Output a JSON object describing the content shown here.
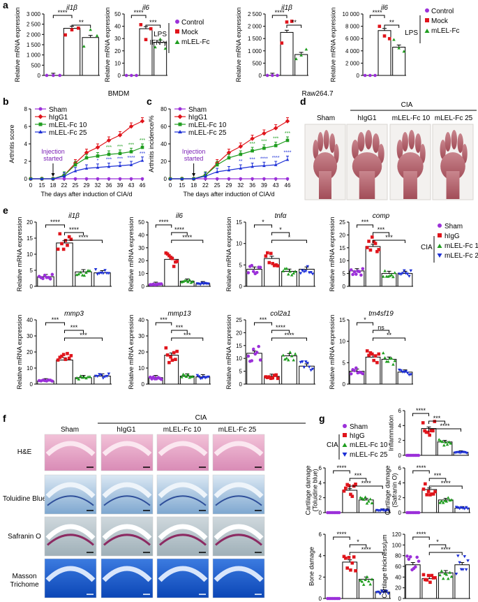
{
  "colors": {
    "sham": "#9b30d9",
    "higg": "#e0141b",
    "m10": "#1f9d1f",
    "m25": "#1c2fd6",
    "bar": "#000000"
  },
  "panel_labels": {
    "a": "a",
    "b": "b",
    "c": "c",
    "d": "d",
    "e": "e",
    "f": "f",
    "g": "g"
  },
  "legends": {
    "a_left": {
      "lps": "LPS",
      "ifn": "IFN-γ",
      "items": [
        {
          "label": "Control",
          "color": "#9b30d9",
          "marker": "circle"
        },
        {
          "label": "Mock",
          "color": "#e0141b",
          "marker": "square"
        },
        {
          "label": "mLEL-Fc",
          "color": "#1f9d1f",
          "marker": "triangle"
        }
      ]
    },
    "a_right": {
      "lps": "LPS",
      "items": [
        {
          "label": "Control",
          "color": "#9b30d9",
          "marker": "circle"
        },
        {
          "label": "Mock",
          "color": "#e0141b",
          "marker": "square"
        },
        {
          "label": "mLEL-Fc",
          "color": "#1f9d1f",
          "marker": "triangle"
        }
      ]
    },
    "cia_groups": {
      "cia": "CIA",
      "items": [
        {
          "label": "Sham",
          "color": "#9b30d9",
          "marker": "circle"
        },
        {
          "label": "hIgG",
          "color": "#e0141b",
          "marker": "square"
        },
        {
          "label": "mLEL-Fc 10",
          "color": "#1f9d1f",
          "marker": "triangle"
        },
        {
          "label": "mLEL-Fc 25",
          "color": "#1c2fd6",
          "marker": "triangledown"
        }
      ]
    },
    "time_course": [
      {
        "label": "Sham",
        "color": "#9b30d9"
      },
      {
        "label": "hIgG1",
        "color": "#e0141b"
      },
      {
        "label": "mLEL-Fc 10",
        "color": "#1f9d1f"
      },
      {
        "label": "mLEL-Fc 25",
        "color": "#1c2fd6"
      }
    ]
  },
  "cell_labels": {
    "bmdm": "BMDM",
    "raw": "Raw264.7"
  },
  "chart_data": [
    {
      "id": "a1",
      "type": "bar",
      "title": "il1β",
      "ylabel": "Relative mRNA expression",
      "ylim": [
        0,
        3000
      ],
      "yticks": [
        0,
        500,
        1000,
        1500,
        2000,
        2500,
        3000
      ],
      "values": [
        1,
        2300,
        1850
      ],
      "sig": [
        {
          "g1": 0,
          "g2": 1,
          "label": "****"
        },
        {
          "g1": 1,
          "g2": 2,
          "label": "**"
        }
      ]
    },
    {
      "id": "a2",
      "type": "bar",
      "title": "il6",
      "ylabel": "Relative mRNA expression",
      "ylim": [
        0,
        50
      ],
      "yticks": [
        0,
        10,
        20,
        30,
        40,
        50
      ],
      "values": [
        0,
        38,
        27
      ],
      "sig": [
        {
          "g1": 0,
          "g2": 1,
          "label": "****"
        },
        {
          "g1": 1,
          "g2": 2,
          "label": "***"
        }
      ]
    },
    {
      "id": "a3",
      "type": "bar",
      "title": "il1β",
      "ylabel": "Relative mRNA expression",
      "ylim": [
        0,
        2500
      ],
      "yticks": [
        0,
        500,
        1000,
        1500,
        2000,
        2500
      ],
      "values": [
        1,
        1750,
        850
      ],
      "sig": [
        {
          "g1": 0,
          "g2": 1,
          "label": "****"
        },
        {
          "g1": 1,
          "g2": 2,
          "label": "**"
        }
      ]
    },
    {
      "id": "a4",
      "type": "bar",
      "title": "il6",
      "ylabel": "Relative mRNA expression",
      "ylim": [
        0,
        10000
      ],
      "yticks": [
        0,
        2000,
        4000,
        6000,
        8000,
        10000
      ],
      "values": [
        0,
        7300,
        4600
      ],
      "sig": [
        {
          "g1": 0,
          "g2": 1,
          "label": "****"
        },
        {
          "g1": 1,
          "g2": 2,
          "label": "**"
        }
      ]
    },
    {
      "id": "b",
      "type": "line",
      "ylabel": "Arthritis score",
      "xlabel": "The days after induction of CIA/d",
      "ylim": [
        0,
        8
      ],
      "yticks": [
        0,
        2,
        4,
        6,
        8
      ],
      "x": [
        0,
        15,
        18,
        22,
        25,
        29,
        32,
        36,
        39,
        43,
        46
      ],
      "annotation": "Injection started",
      "series": [
        {
          "name": "Sham",
          "values": [
            0,
            0,
            0,
            0,
            0,
            0,
            0,
            0,
            0,
            0,
            0
          ]
        },
        {
          "name": "hIgG1",
          "values": [
            0,
            0,
            0,
            0.4,
            1.8,
            3.0,
            3.6,
            4.4,
            5.0,
            6.0,
            6.6
          ]
        },
        {
          "name": "mLEL-Fc 10",
          "values": [
            0,
            0,
            0,
            0.4,
            1.6,
            2.4,
            2.6,
            2.8,
            2.9,
            3.1,
            3.6
          ]
        },
        {
          "name": "mLEL-Fc 25",
          "values": [
            0,
            0,
            0,
            0.3,
            0.9,
            1.2,
            1.3,
            1.4,
            1.5,
            1.6,
            2.1
          ]
        }
      ],
      "sig": [
        {
          "x": 32,
          "label": "*"
        },
        {
          "x": 36,
          "label": "***"
        },
        {
          "x": 39,
          "label": "***"
        },
        {
          "x": 43,
          "label": "****"
        },
        {
          "x": 46,
          "label": "***"
        }
      ]
    },
    {
      "id": "c",
      "type": "line",
      "ylabel": "Arthritis incidence/%",
      "xlabel": "The days after induction of CIA/d",
      "ylim": [
        0,
        80
      ],
      "yticks": [
        0,
        20,
        40,
        60,
        80
      ],
      "x": [
        0,
        15,
        18,
        22,
        25,
        29,
        32,
        36,
        39,
        43,
        46
      ],
      "annotation": "Injection started",
      "series": [
        {
          "name": "Sham",
          "values": [
            0,
            0,
            0,
            0,
            0,
            0,
            0,
            0,
            0,
            0,
            0
          ]
        },
        {
          "name": "hIgG1",
          "values": [
            0,
            0,
            0,
            4,
            18,
            30,
            37,
            46,
            52,
            58,
            66
          ]
        },
        {
          "name": "mLEL-Fc 10",
          "values": [
            0,
            0,
            0,
            4,
            16,
            24,
            28,
            32,
            35,
            38,
            44
          ]
        },
        {
          "name": "mLEL-Fc 25",
          "values": [
            0,
            0,
            0,
            3,
            8,
            10,
            12,
            14,
            15,
            16,
            22
          ]
        }
      ],
      "sig": [
        {
          "x": 32,
          "label": "**"
        },
        {
          "x": 36,
          "label": "***"
        },
        {
          "x": 39,
          "label": "****"
        },
        {
          "x": 43,
          "label": "****"
        },
        {
          "x": 46,
          "label": "****"
        }
      ]
    },
    {
      "id": "e1",
      "type": "bar",
      "title": "il1β",
      "ylabel": "Relative mRNA expression",
      "ylim": [
        0,
        20
      ],
      "yticks": [
        0,
        5,
        10,
        15,
        20
      ],
      "values": [
        3,
        13.5,
        4.5,
        4.2
      ],
      "sig": [
        {
          "g1": 0,
          "g2": 1,
          "label": "****"
        },
        {
          "g1": 1,
          "g2": 2,
          "label": "****"
        },
        {
          "g1": 1,
          "g2": 3,
          "label": "****"
        }
      ]
    },
    {
      "id": "e2",
      "type": "bar",
      "title": "il6",
      "ylabel": "Relative mRNA expression",
      "ylim": [
        0,
        50
      ],
      "yticks": [
        0,
        10,
        20,
        30,
        40,
        50
      ],
      "values": [
        1.5,
        21,
        4,
        2
      ],
      "sig": [
        {
          "g1": 0,
          "g2": 1,
          "label": "****"
        },
        {
          "g1": 1,
          "g2": 2,
          "label": "****"
        },
        {
          "g1": 1,
          "g2": 3,
          "label": "****"
        }
      ]
    },
    {
      "id": "e3",
      "type": "bar",
      "title": "tnfα",
      "ylabel": "Relative mRNA expression",
      "ylim": [
        0,
        15
      ],
      "yticks": [
        0,
        5,
        10,
        15
      ],
      "values": [
        4,
        6.5,
        3.5,
        4
      ],
      "sig": [
        {
          "g1": 0,
          "g2": 1,
          "label": "*"
        },
        {
          "g1": 1,
          "g2": 2,
          "label": "*"
        },
        {
          "g1": 1,
          "g2": 3,
          "label": "*"
        }
      ]
    },
    {
      "id": "e4",
      "type": "bar",
      "title": "comp",
      "ylabel": "Relative mRNA expression",
      "ylim": [
        0,
        25
      ],
      "yticks": [
        0,
        5,
        10,
        15,
        20,
        25
      ],
      "values": [
        6,
        15.5,
        5,
        5
      ],
      "sig": [
        {
          "g1": 0,
          "g2": 1,
          "label": "***"
        },
        {
          "g1": 1,
          "g2": 2,
          "label": "***"
        },
        {
          "g1": 1,
          "g2": 3,
          "label": "***"
        }
      ]
    },
    {
      "id": "e5",
      "type": "bar",
      "title": "mmp3",
      "ylabel": "Relative mRNA expression",
      "ylim": [
        0,
        40
      ],
      "yticks": [
        0,
        10,
        20,
        30,
        40
      ],
      "values": [
        2,
        15,
        4,
        5
      ],
      "sig": [
        {
          "g1": 0,
          "g2": 1,
          "label": "***"
        },
        {
          "g1": 1,
          "g2": 2,
          "label": "***"
        },
        {
          "g1": 1,
          "g2": 3,
          "label": "***"
        }
      ]
    },
    {
      "id": "e6",
      "type": "bar",
      "title": "mmp13",
      "ylabel": "Relative mRNA expression",
      "ylim": [
        0,
        40
      ],
      "yticks": [
        0,
        10,
        20,
        30,
        40
      ],
      "values": [
        4,
        18,
        5,
        4.5
      ],
      "sig": [
        {
          "g1": 0,
          "g2": 1,
          "label": "***"
        },
        {
          "g1": 1,
          "g2": 2,
          "label": "***"
        },
        {
          "g1": 1,
          "g2": 3,
          "label": "***"
        }
      ]
    },
    {
      "id": "e7",
      "type": "bar",
      "title": "col2a1",
      "ylabel": "Relative mRNA expression",
      "ylim": [
        0,
        25
      ],
      "yticks": [
        0,
        5,
        10,
        15,
        20,
        25
      ],
      "values": [
        12,
        3,
        11,
        7
      ],
      "sig": [
        {
          "g1": 0,
          "g2": 1,
          "label": "***"
        },
        {
          "g1": 1,
          "g2": 2,
          "label": "****"
        },
        {
          "g1": 1,
          "g2": 3,
          "label": "****"
        }
      ]
    },
    {
      "id": "e8",
      "type": "bar",
      "title": "tm4sf19",
      "ylabel": "Relative mRNA expression",
      "ylim": [
        0,
        15
      ],
      "yticks": [
        0,
        5,
        10,
        15
      ],
      "values": [
        3,
        6.3,
        5.8,
        2.8
      ],
      "sig": [
        {
          "g1": 0,
          "g2": 1,
          "label": "*"
        },
        {
          "g1": 1,
          "g2": 2,
          "label": "ns"
        },
        {
          "g1": 1,
          "g2": 3,
          "label": "**"
        }
      ]
    },
    {
      "id": "g1",
      "type": "bar",
      "title": "",
      "ylabel": "Inflammation",
      "ylim": [
        0,
        6
      ],
      "yticks": [
        0,
        2,
        4,
        6
      ],
      "values": [
        0,
        3.6,
        1.8,
        0.4
      ],
      "sig": [
        {
          "g1": 0,
          "g2": 1,
          "label": "****"
        },
        {
          "g1": 1,
          "g2": 2,
          "label": "***"
        },
        {
          "g1": 1,
          "g2": 3,
          "label": "****"
        }
      ]
    },
    {
      "id": "g2",
      "type": "bar",
      "title": "",
      "ylabel": "Cartilage damage (Toluidine blue)",
      "ylim": [
        0,
        6
      ],
      "yticks": [
        0,
        2,
        4,
        6
      ],
      "values": [
        0,
        3.0,
        1.7,
        0.3
      ],
      "sig": [
        {
          "g1": 0,
          "g2": 1,
          "label": "****"
        },
        {
          "g1": 1,
          "g2": 2,
          "label": "***"
        },
        {
          "g1": 1,
          "g2": 3,
          "label": "****"
        }
      ]
    },
    {
      "id": "g3",
      "type": "bar",
      "title": "",
      "ylabel": "Cartilage damage (Safranin O)",
      "ylim": [
        0,
        6
      ],
      "yticks": [
        0,
        2,
        4,
        6
      ],
      "values": [
        0,
        3.1,
        1.7,
        0.6
      ],
      "sig": [
        {
          "g1": 0,
          "g2": 1,
          "label": "****"
        },
        {
          "g1": 1,
          "g2": 2,
          "label": "***"
        },
        {
          "g1": 1,
          "g2": 3,
          "label": "****"
        }
      ]
    },
    {
      "id": "g4",
      "type": "bar",
      "title": "",
      "ylabel": "Bone damage",
      "ylim": [
        0,
        6
      ],
      "yticks": [
        0,
        2,
        4,
        6
      ],
      "values": [
        0,
        3.4,
        1.8,
        0.6
      ],
      "sig": [
        {
          "g1": 0,
          "g2": 1,
          "label": "****"
        },
        {
          "g1": 1,
          "g2": 2,
          "label": "*"
        },
        {
          "g1": 1,
          "g2": 3,
          "label": "****"
        }
      ]
    },
    {
      "id": "g5",
      "type": "bar",
      "title": "",
      "ylabel": "Cartilage thickness/μm",
      "ylim": [
        0,
        120
      ],
      "yticks": [
        0,
        20,
        40,
        60,
        80,
        100,
        120
      ],
      "values": [
        63,
        37,
        48,
        63
      ],
      "sig": [
        {
          "g1": 0,
          "g2": 1,
          "label": "****"
        },
        {
          "g1": 1,
          "g2": 2,
          "label": "*"
        },
        {
          "g1": 1,
          "g2": 3,
          "label": "****"
        }
      ]
    }
  ],
  "photos_d": {
    "cia": "CIA",
    "columns": [
      "Sham",
      "hIgG1",
      "mLEL-Fc 10",
      "mLEL-Fc 25"
    ]
  },
  "histology_f": {
    "cia": "CIA",
    "columns": [
      "Sham",
      "hIgG1",
      "mLEL-Fc 10",
      "mLEL-Fc 25"
    ],
    "rows": [
      "H&E",
      "Toluidine Blue",
      "Safranin O",
      "Masson Trichome"
    ]
  }
}
